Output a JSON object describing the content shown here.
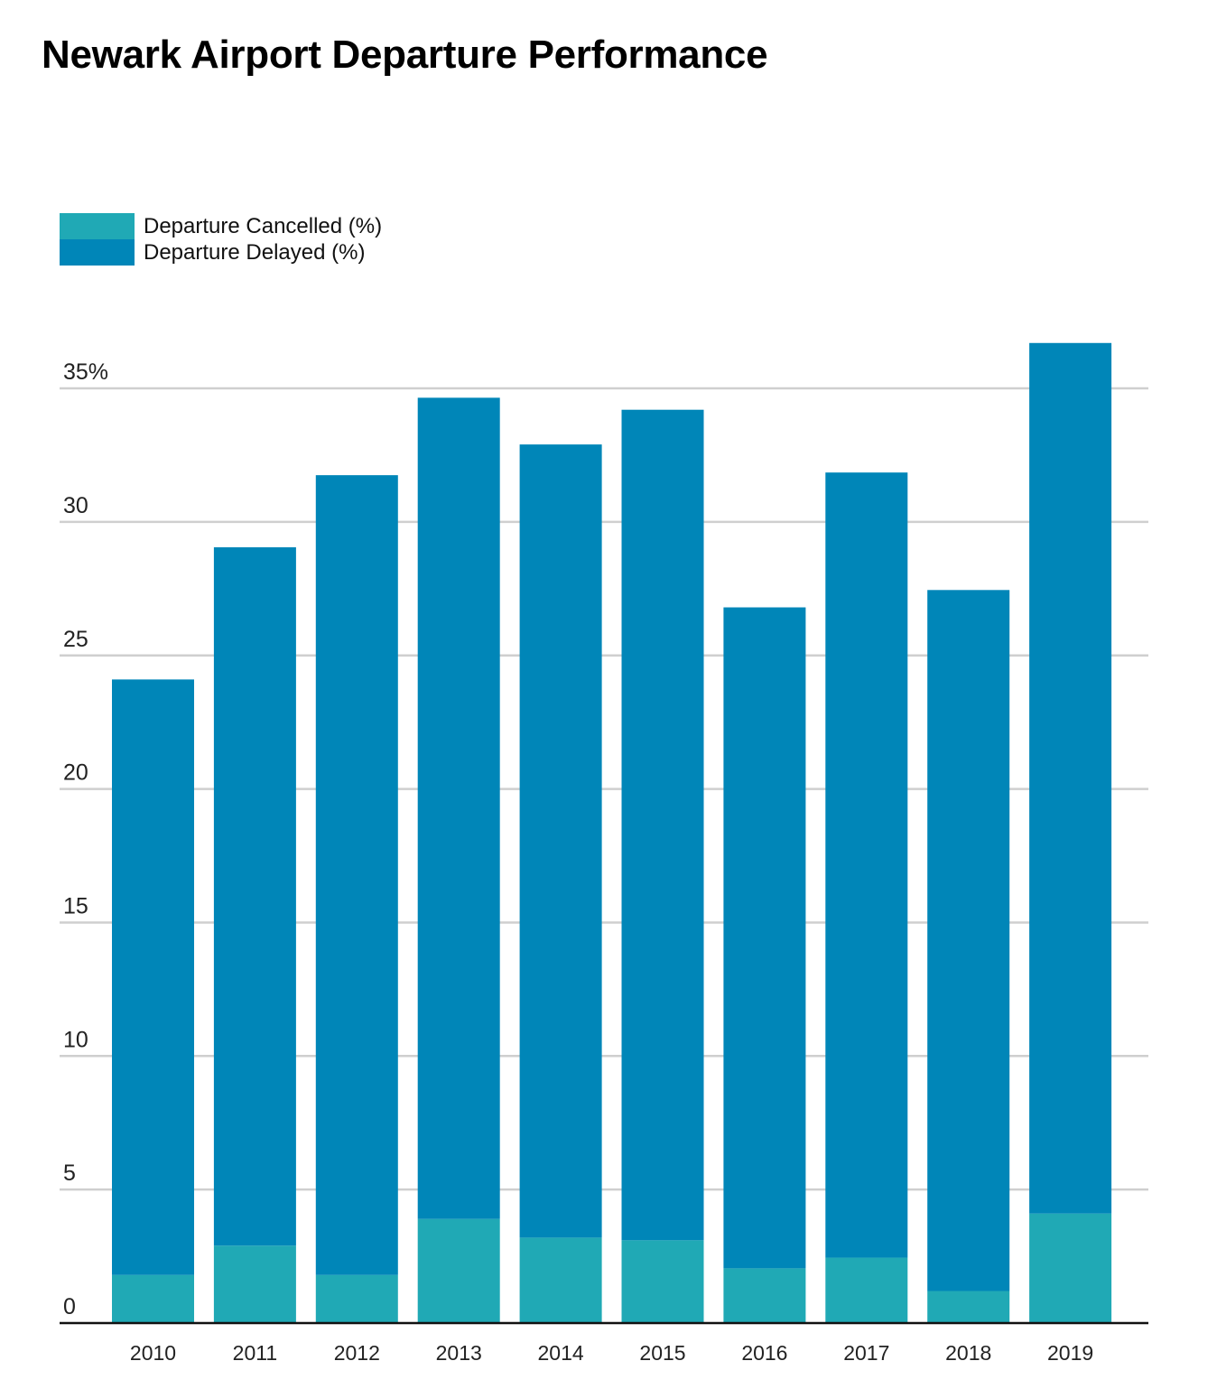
{
  "chart_data": {
    "type": "bar",
    "stacked": true,
    "title": "Newark Airport Departure Performance",
    "xlabel": "",
    "ylabel": "",
    "categories": [
      "2010",
      "2011",
      "2012",
      "2013",
      "2014",
      "2015",
      "2016",
      "2017",
      "2018",
      "2019"
    ],
    "series": [
      {
        "name": "Departure Cancelled (%)",
        "color": "#20a9b5",
        "values": [
          1.8,
          2.9,
          1.8,
          3.9,
          3.2,
          3.1,
          2.05,
          2.45,
          1.2,
          4.1
        ]
      },
      {
        "name": "Departure Delayed (%)",
        "color": "#0086b8",
        "values": [
          22.3,
          26.15,
          29.95,
          30.75,
          29.7,
          31.1,
          24.75,
          29.4,
          26.25,
          32.6
        ]
      }
    ],
    "y_ticks": [
      {
        "value": 0,
        "label": "0"
      },
      {
        "value": 5,
        "label": "5"
      },
      {
        "value": 10,
        "label": "10"
      },
      {
        "value": 15,
        "label": "15"
      },
      {
        "value": 20,
        "label": "20"
      },
      {
        "value": 25,
        "label": "25"
      },
      {
        "value": 30,
        "label": "30"
      },
      {
        "value": 35,
        "label": "35%"
      }
    ],
    "ylim": [
      0,
      36.7
    ],
    "grid": true,
    "legend_position": "top-left"
  }
}
